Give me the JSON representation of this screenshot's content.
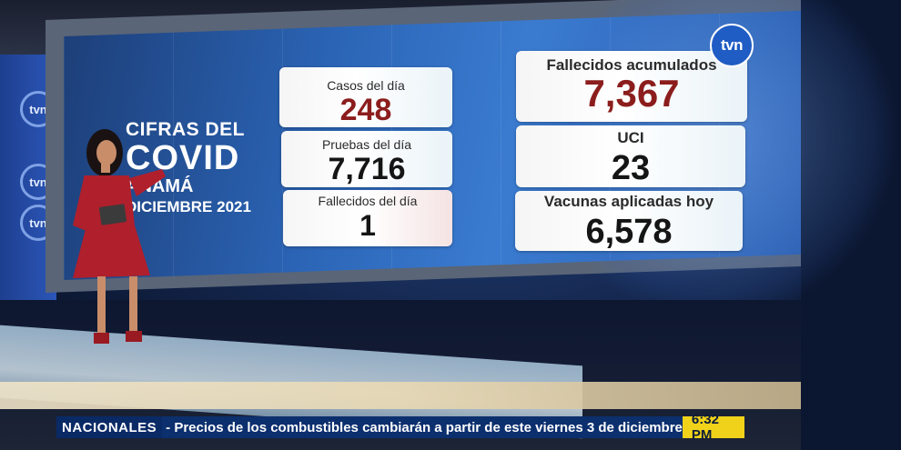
{
  "channel": {
    "logo_text": "tvn"
  },
  "wall": {
    "logo_text": "tvn"
  },
  "title": {
    "line1": "CIFRAS DEL",
    "line2": "COVID",
    "line3": "ANAMÁ",
    "line4": "DICIEMBRE 2021"
  },
  "stats": [
    {
      "label": "Casos del día",
      "value": "248"
    },
    {
      "label": "Pruebas del día",
      "value": "7,716"
    },
    {
      "label": "Fallecidos del día",
      "value": "1"
    },
    {
      "label": "Fallecidos acumulados",
      "value": "7,367"
    },
    {
      "label": "UCI",
      "value": "23"
    },
    {
      "label": "Vacunas aplicadas hoy",
      "value": "6,578"
    }
  ],
  "ticker": {
    "section": "NACIONALES",
    "headline": "- Precios de los combustibles cambiarán a partir de este viernes 3 de diciembre",
    "time": "6:32 PM"
  },
  "colors": {
    "accent_red": "#8c1d1d",
    "ticker_bg": "#0c2f6e",
    "time_bg": "#f1d21a",
    "screen_blue": "#2b64b5"
  }
}
